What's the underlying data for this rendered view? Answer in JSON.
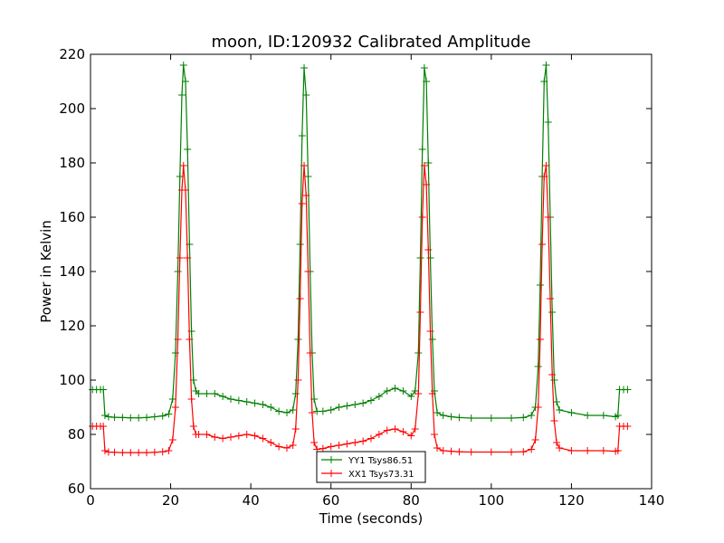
{
  "chart_data": {
    "type": "line",
    "title": "moon, ID:120932 Calibrated Amplitude",
    "xlabel": "Time (seconds)",
    "ylabel": "Power in Kelvin",
    "xlim": [
      0,
      140
    ],
    "ylim": [
      60,
      220
    ],
    "xticks": [
      "0",
      "20",
      "40",
      "60",
      "80",
      "100",
      "120",
      "140"
    ],
    "yticks": [
      "60",
      "80",
      "100",
      "120",
      "140",
      "160",
      "180",
      "200",
      "220"
    ],
    "grid": false,
    "legend_position": "bottom-center",
    "marker": "+",
    "series": [
      {
        "name": "YY1 Tsys86.51",
        "color": "#008000",
        "points": [
          [
            0.5,
            96.5
          ],
          [
            1.5,
            96.5
          ],
          [
            2.5,
            96.5
          ],
          [
            3.2,
            96.5
          ],
          [
            3.6,
            87
          ],
          [
            4.5,
            86.5
          ],
          [
            6,
            86.3
          ],
          [
            8,
            86.2
          ],
          [
            10,
            86.1
          ],
          [
            12,
            86.1
          ],
          [
            14,
            86.2
          ],
          [
            16,
            86.5
          ],
          [
            18,
            86.8
          ],
          [
            19.5,
            87.5
          ],
          [
            20.5,
            93
          ],
          [
            21.2,
            110
          ],
          [
            21.8,
            140
          ],
          [
            22.3,
            175
          ],
          [
            22.8,
            205
          ],
          [
            23.2,
            216
          ],
          [
            23.7,
            210
          ],
          [
            24.2,
            185
          ],
          [
            24.7,
            150
          ],
          [
            25.2,
            118
          ],
          [
            25.7,
            100
          ],
          [
            26.3,
            96
          ],
          [
            27,
            95
          ],
          [
            29,
            95
          ],
          [
            31,
            95
          ],
          [
            33,
            94
          ],
          [
            35,
            93
          ],
          [
            37,
            92.5
          ],
          [
            39,
            92
          ],
          [
            41,
            91.5
          ],
          [
            43,
            91
          ],
          [
            45,
            90
          ],
          [
            47,
            88.5
          ],
          [
            49,
            88
          ],
          [
            50.5,
            89
          ],
          [
            51.2,
            95
          ],
          [
            51.8,
            115
          ],
          [
            52.3,
            150
          ],
          [
            52.8,
            190
          ],
          [
            53.3,
            215
          ],
          [
            53.8,
            205
          ],
          [
            54.3,
            175
          ],
          [
            54.8,
            140
          ],
          [
            55.3,
            110
          ],
          [
            55.8,
            93
          ],
          [
            56.5,
            88.5
          ],
          [
            58,
            88.5
          ],
          [
            60,
            89
          ],
          [
            62,
            90
          ],
          [
            64,
            90.5
          ],
          [
            66,
            91
          ],
          [
            68,
            91.5
          ],
          [
            70,
            92.5
          ],
          [
            72,
            94
          ],
          [
            74,
            96
          ],
          [
            76,
            97
          ],
          [
            78,
            96
          ],
          [
            80,
            94
          ],
          [
            81,
            96
          ],
          [
            81.8,
            110
          ],
          [
            82.3,
            145
          ],
          [
            82.8,
            185
          ],
          [
            83.3,
            215
          ],
          [
            83.8,
            210
          ],
          [
            84.3,
            180
          ],
          [
            84.8,
            145
          ],
          [
            85.3,
            115
          ],
          [
            85.8,
            96
          ],
          [
            86.5,
            88
          ],
          [
            88,
            87
          ],
          [
            90,
            86.5
          ],
          [
            92,
            86.2
          ],
          [
            95,
            86
          ],
          [
            100,
            86
          ],
          [
            105,
            86
          ],
          [
            108,
            86.2
          ],
          [
            110,
            87
          ],
          [
            111,
            90
          ],
          [
            111.7,
            105
          ],
          [
            112.2,
            135
          ],
          [
            112.7,
            175
          ],
          [
            113.2,
            210
          ],
          [
            113.7,
            216
          ],
          [
            114.2,
            195
          ],
          [
            114.7,
            160
          ],
          [
            115.2,
            125
          ],
          [
            115.7,
            100
          ],
          [
            116.3,
            92
          ],
          [
            117,
            89
          ],
          [
            120,
            88
          ],
          [
            124,
            87
          ],
          [
            128,
            87
          ],
          [
            131,
            86.5
          ],
          [
            131.6,
            87
          ],
          [
            132,
            96.5
          ],
          [
            133,
            96.5
          ],
          [
            134,
            96.5
          ]
        ]
      },
      {
        "name": "XX1 Tsys73.31",
        "color": "#ff0000",
        "points": [
          [
            0.5,
            83
          ],
          [
            1.5,
            83
          ],
          [
            2.5,
            83
          ],
          [
            3.2,
            83
          ],
          [
            3.6,
            74
          ],
          [
            4.5,
            73.5
          ],
          [
            6,
            73.4
          ],
          [
            8,
            73.3
          ],
          [
            10,
            73.3
          ],
          [
            12,
            73.3
          ],
          [
            14,
            73.3
          ],
          [
            16,
            73.4
          ],
          [
            18,
            73.6
          ],
          [
            19.5,
            74
          ],
          [
            20.5,
            78
          ],
          [
            21.2,
            90
          ],
          [
            21.8,
            115
          ],
          [
            22.3,
            145
          ],
          [
            22.8,
            170
          ],
          [
            23.2,
            179
          ],
          [
            23.7,
            170
          ],
          [
            24.2,
            145
          ],
          [
            24.7,
            115
          ],
          [
            25.2,
            93
          ],
          [
            25.7,
            83
          ],
          [
            26.3,
            80
          ],
          [
            27,
            80
          ],
          [
            29,
            80
          ],
          [
            31,
            79
          ],
          [
            33,
            78.5
          ],
          [
            35,
            79
          ],
          [
            37,
            79.5
          ],
          [
            39,
            80
          ],
          [
            41,
            79.5
          ],
          [
            43,
            78.5
          ],
          [
            45,
            77
          ],
          [
            47,
            75.5
          ],
          [
            49,
            75
          ],
          [
            50.5,
            76
          ],
          [
            51.2,
            82
          ],
          [
            51.8,
            100
          ],
          [
            52.3,
            130
          ],
          [
            52.8,
            165
          ],
          [
            53.3,
            179
          ],
          [
            53.8,
            168
          ],
          [
            54.3,
            140
          ],
          [
            54.8,
            110
          ],
          [
            55.3,
            88
          ],
          [
            55.8,
            77
          ],
          [
            56.5,
            74.5
          ],
          [
            58,
            74.8
          ],
          [
            60,
            75.5
          ],
          [
            62,
            76
          ],
          [
            64,
            76.5
          ],
          [
            66,
            77
          ],
          [
            68,
            77.5
          ],
          [
            70,
            78.5
          ],
          [
            72,
            80
          ],
          [
            74,
            81.5
          ],
          [
            76,
            82
          ],
          [
            78,
            81
          ],
          [
            80,
            79.5
          ],
          [
            81,
            82
          ],
          [
            81.8,
            95
          ],
          [
            82.3,
            125
          ],
          [
            82.8,
            160
          ],
          [
            83.3,
            179
          ],
          [
            83.8,
            172
          ],
          [
            84.3,
            148
          ],
          [
            84.8,
            118
          ],
          [
            85.3,
            95
          ],
          [
            85.8,
            80
          ],
          [
            86.5,
            75
          ],
          [
            88,
            74
          ],
          [
            90,
            73.8
          ],
          [
            92,
            73.6
          ],
          [
            95,
            73.5
          ],
          [
            100,
            73.5
          ],
          [
            105,
            73.5
          ],
          [
            108,
            73.6
          ],
          [
            110,
            74.5
          ],
          [
            111,
            78
          ],
          [
            111.7,
            90
          ],
          [
            112.2,
            115
          ],
          [
            112.7,
            150
          ],
          [
            113.2,
            175
          ],
          [
            113.7,
            179
          ],
          [
            114.2,
            160
          ],
          [
            114.7,
            130
          ],
          [
            115.2,
            102
          ],
          [
            115.7,
            85
          ],
          [
            116.3,
            77
          ],
          [
            117,
            75
          ],
          [
            120,
            74
          ],
          [
            124,
            74
          ],
          [
            128,
            74
          ],
          [
            131,
            73.8
          ],
          [
            131.6,
            74
          ],
          [
            132,
            83
          ],
          [
            133,
            83
          ],
          [
            134,
            83
          ]
        ]
      }
    ]
  }
}
